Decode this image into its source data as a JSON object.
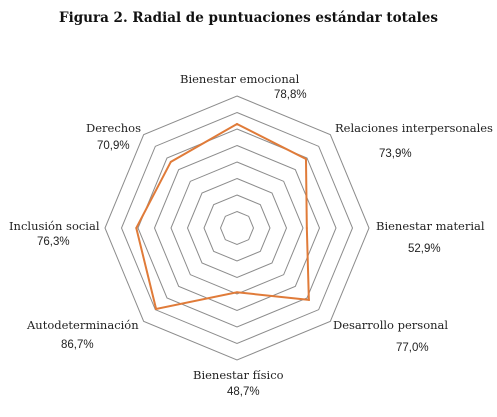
{
  "title": "Figura 2. Radial de puntuaciones estándar totales",
  "chart_data": {
    "type": "radar",
    "axes": [
      "Bienestar emocional",
      "Relaciones interpersonales",
      "Bienestar material",
      "Desarrollo personal",
      "Bienestar físico",
      "Autodeterminación",
      "Inclusión social",
      "Derechos"
    ],
    "values": [
      78.8,
      73.9,
      52.9,
      77.0,
      48.7,
      86.7,
      76.3,
      70.9
    ],
    "value_labels": [
      "78,8%",
      "73,9%",
      "52,9%",
      "77,0%",
      "48,7%",
      "86,7%",
      "76,3%",
      "70,9%"
    ],
    "range": [
      0,
      100
    ],
    "rings": 8,
    "grid": true,
    "legend": "none",
    "series_color": "#E07B39",
    "grid_color": "#8C8C8C"
  }
}
